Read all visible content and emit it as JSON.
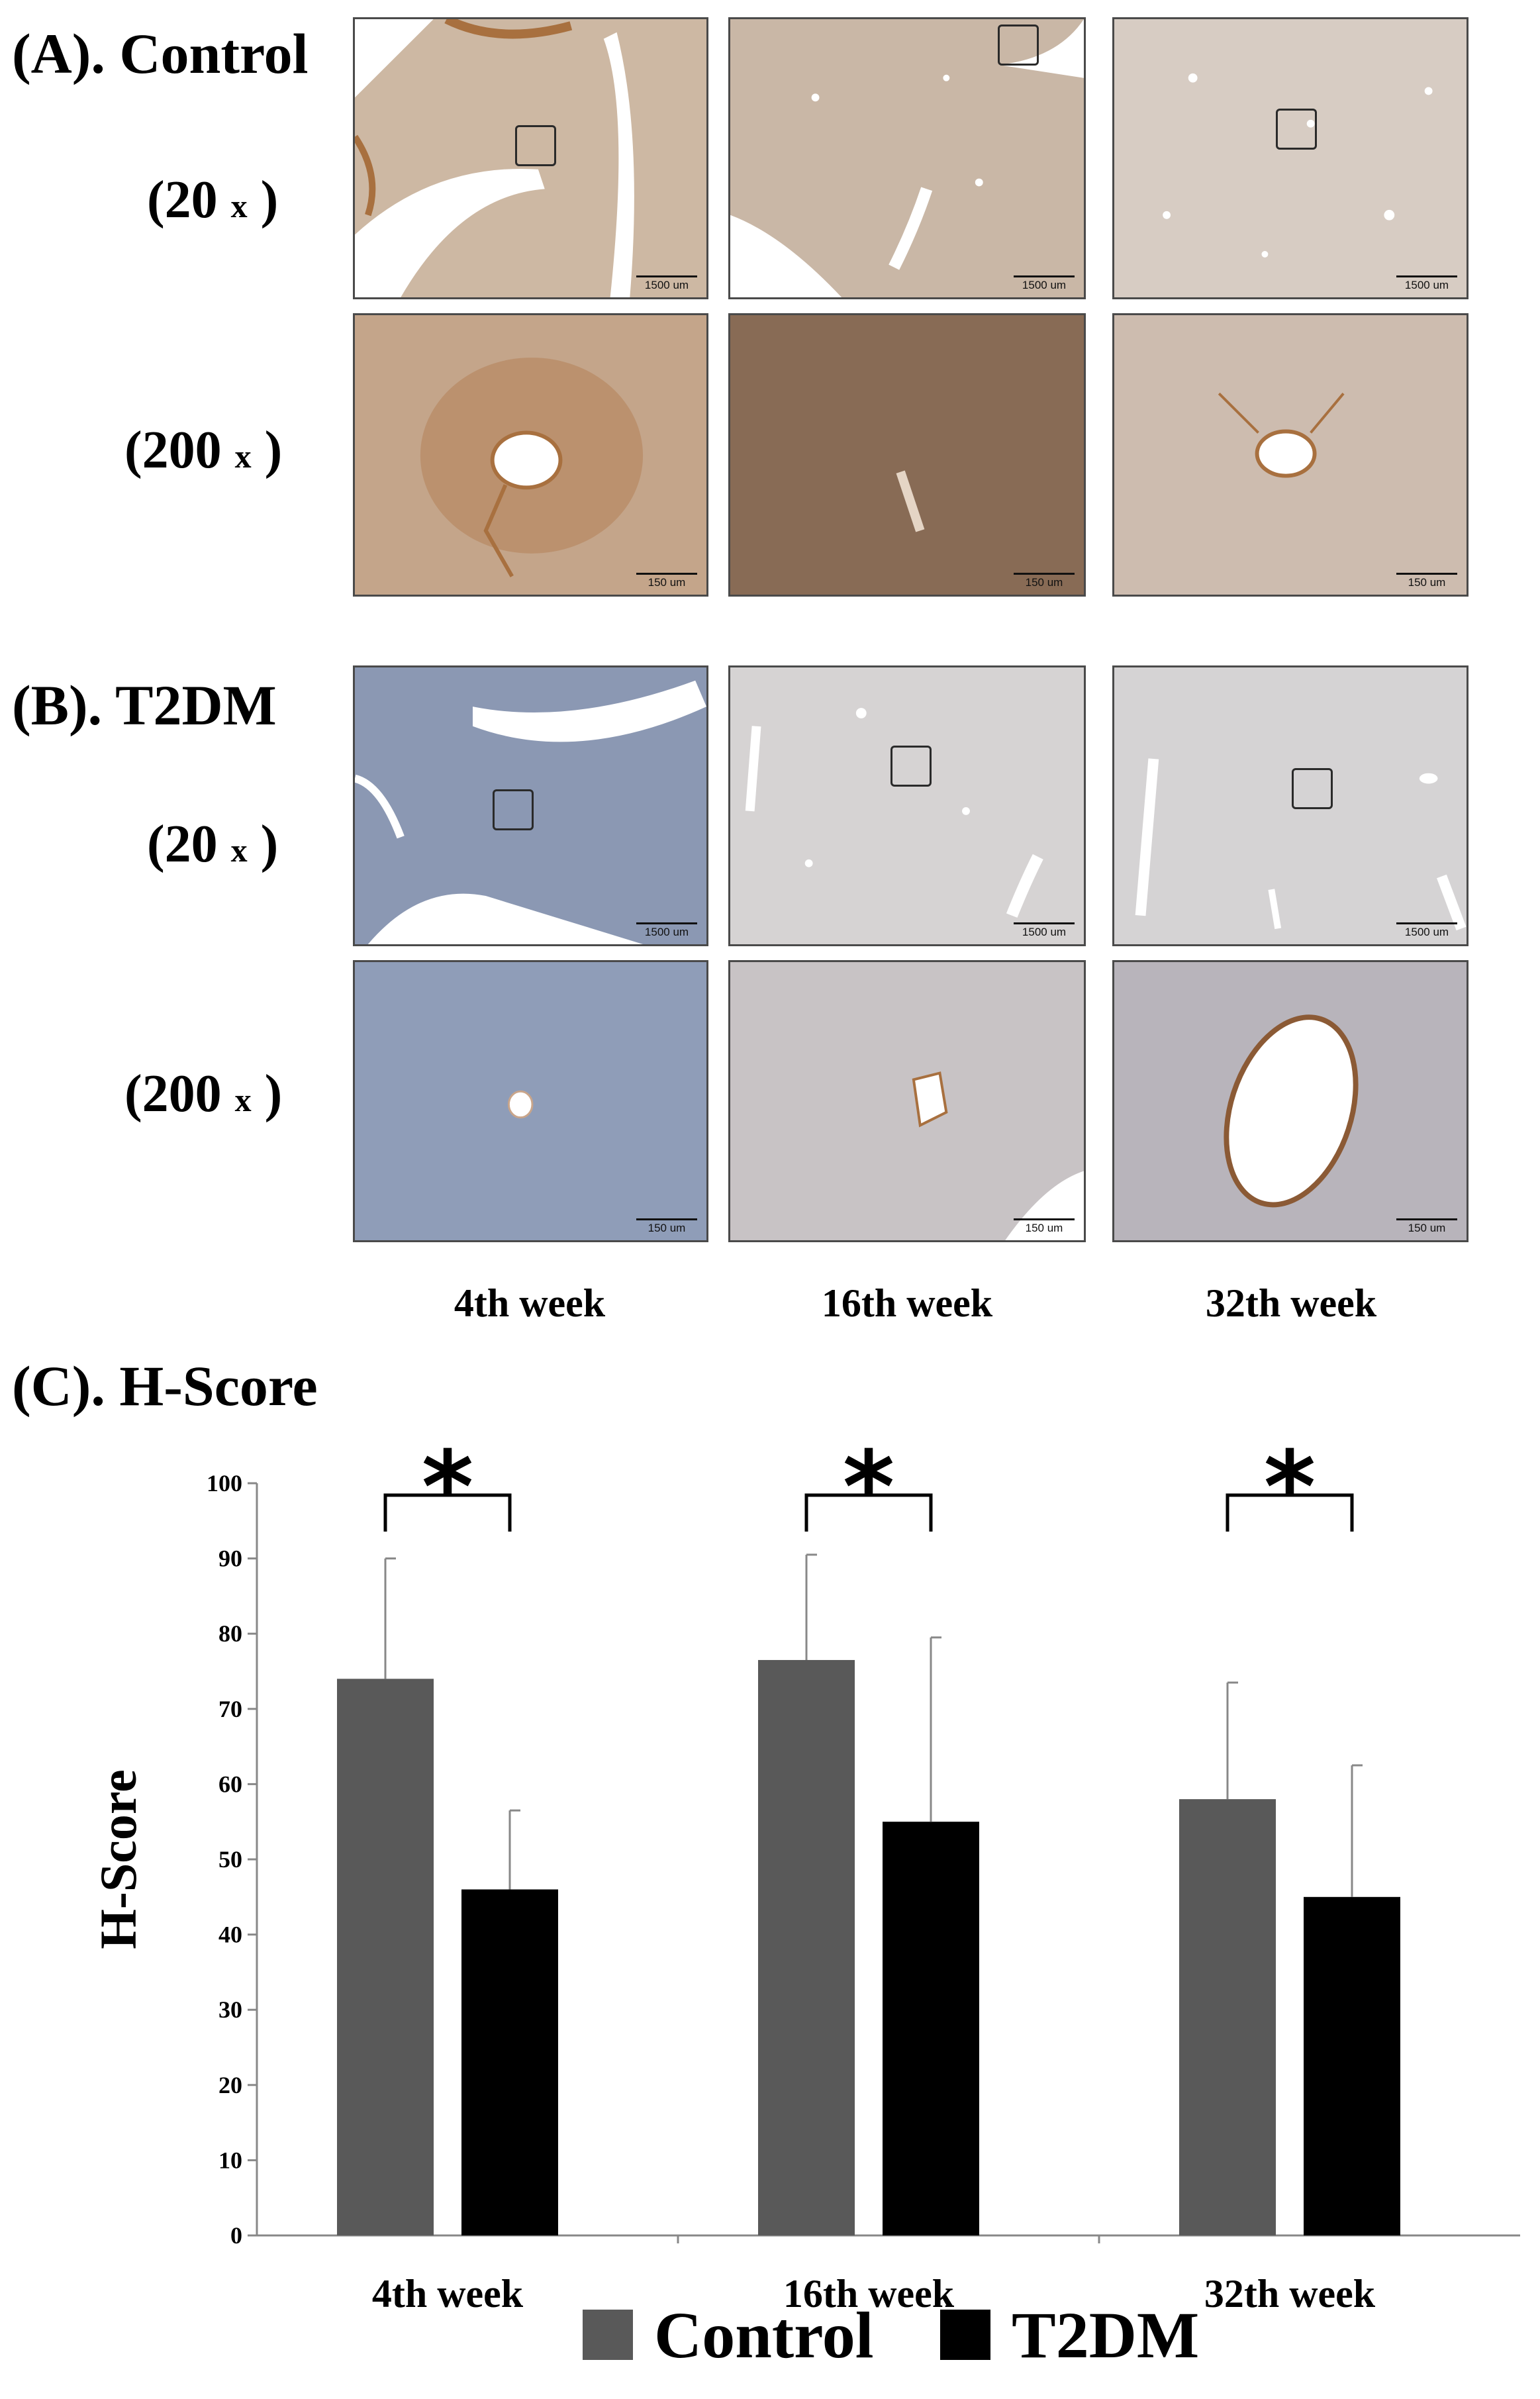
{
  "panels": {
    "a_title": "(A). Control",
    "b_title": "(B). T2DM",
    "c_title": "(C). H-Score",
    "mag_low": "(20",
    "mag_high": "(200",
    "mag_x": "x",
    "mag_close": ")",
    "scale_low": "1500 um",
    "scale_high": "150 um",
    "columns": [
      "4th week",
      "16th week",
      "32th week"
    ]
  },
  "colors": {
    "control": "#595959",
    "t2dm": "#000000",
    "stain_brown": "#b07a4f",
    "stain_blue": "#7f93b8"
  },
  "chart_data": {
    "type": "bar",
    "categories": [
      "4th week",
      "16th week",
      "32th week"
    ],
    "series": [
      {
        "name": "Control",
        "values": [
          74,
          76.5,
          58
        ],
        "error": [
          16,
          14,
          15.5
        ],
        "color": "#595959"
      },
      {
        "name": "T2DM",
        "values": [
          46,
          55,
          45
        ],
        "error": [
          10.5,
          24.5,
          17.5
        ],
        "color": "#000000"
      }
    ],
    "ylabel": "H-Score",
    "xlabel": "",
    "ylim": [
      0,
      100
    ],
    "yticks": [
      0,
      10,
      20,
      30,
      40,
      50,
      60,
      70,
      80,
      90,
      100
    ],
    "significance": [
      "*",
      "*",
      "*"
    ],
    "legend": {
      "placement": "bottom-center",
      "entries": [
        "Control",
        "T2DM"
      ]
    }
  }
}
